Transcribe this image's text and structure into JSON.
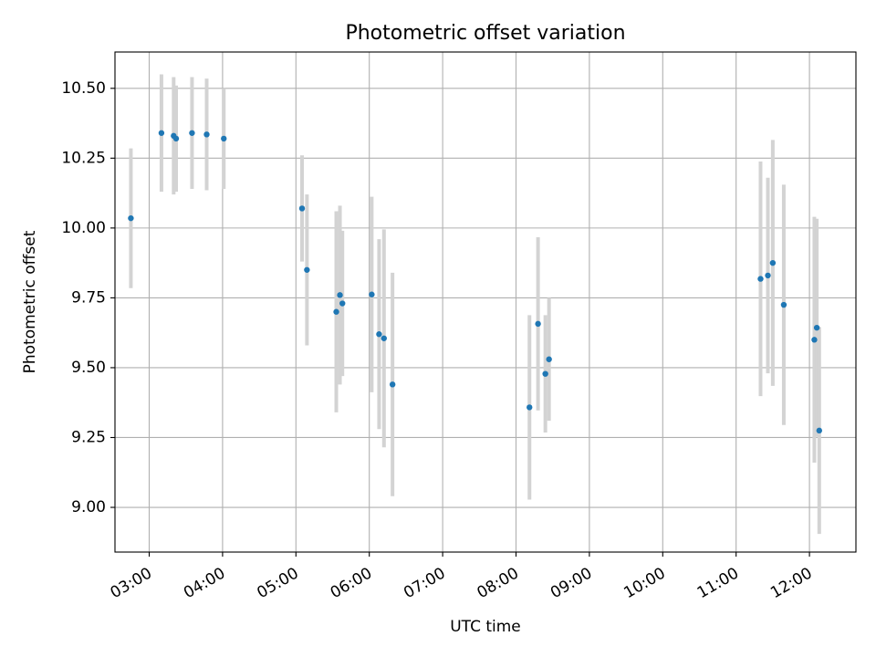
{
  "chart_data": {
    "type": "scatter",
    "title": "Photometric offset variation",
    "xlabel": "UTC time",
    "ylabel": "Photometric offset",
    "grid": true,
    "marker_color": "#1f77b4",
    "errorbar_color": "#d3d3d3",
    "xlim": [
      "02:32",
      "12:38"
    ],
    "ylim": [
      8.84,
      10.63
    ],
    "x_ticks": [
      "03:00",
      "04:00",
      "05:00",
      "06:00",
      "07:00",
      "08:00",
      "09:00",
      "10:00",
      "11:00",
      "12:00"
    ],
    "y_ticks": [
      "9.00",
      "9.25",
      "9.50",
      "9.75",
      "10.00",
      "10.25",
      "10.50"
    ],
    "points": [
      {
        "x": "02:45",
        "y": 10.035,
        "err": 0.25
      },
      {
        "x": "03:10",
        "y": 10.34,
        "err": 0.21
      },
      {
        "x": "03:20",
        "y": 10.33,
        "err": 0.21
      },
      {
        "x": "03:22",
        "y": 10.32,
        "err": 0.19
      },
      {
        "x": "03:35",
        "y": 10.34,
        "err": 0.2
      },
      {
        "x": "03:47",
        "y": 10.335,
        "err": 0.2
      },
      {
        "x": "04:01",
        "y": 10.32,
        "err": 0.18
      },
      {
        "x": "05:05",
        "y": 10.07,
        "err": 0.19
      },
      {
        "x": "05:09",
        "y": 9.85,
        "err": 0.27
      },
      {
        "x": "05:33",
        "y": 9.7,
        "err": 0.36
      },
      {
        "x": "05:36",
        "y": 9.76,
        "err": 0.32
      },
      {
        "x": "05:38",
        "y": 9.73,
        "err": 0.26
      },
      {
        "x": "06:02",
        "y": 9.762,
        "err": 0.35
      },
      {
        "x": "06:08",
        "y": 9.62,
        "err": 0.34
      },
      {
        "x": "06:12",
        "y": 9.605,
        "err": 0.39
      },
      {
        "x": "06:19",
        "y": 9.44,
        "err": 0.4
      },
      {
        "x": "08:11",
        "y": 9.358,
        "err": 0.33
      },
      {
        "x": "08:18",
        "y": 9.657,
        "err": 0.31
      },
      {
        "x": "08:24",
        "y": 9.478,
        "err": 0.21
      },
      {
        "x": "08:27",
        "y": 9.53,
        "err": 0.22
      },
      {
        "x": "11:20",
        "y": 9.818,
        "err": 0.42
      },
      {
        "x": "11:26",
        "y": 9.83,
        "err": 0.35
      },
      {
        "x": "11:30",
        "y": 9.875,
        "err": 0.44
      },
      {
        "x": "11:39",
        "y": 9.725,
        "err": 0.43
      },
      {
        "x": "12:04",
        "y": 9.6,
        "err": 0.44
      },
      {
        "x": "12:06",
        "y": 9.643,
        "err": 0.39
      },
      {
        "x": "12:08",
        "y": 9.275,
        "err": 0.37
      }
    ]
  }
}
